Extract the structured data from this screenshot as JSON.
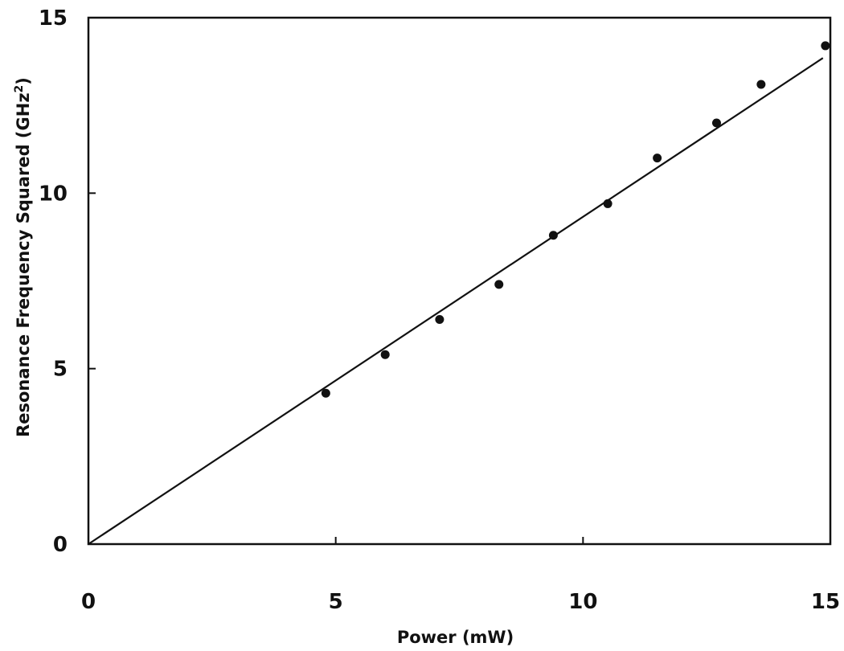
{
  "chart_data": {
    "type": "scatter",
    "title": "",
    "xlabel": "Power (mW)",
    "ylabel_main": "Resonance Frequency Squared (GHz",
    "ylabel_sup": "2",
    "ylabel_end": ")",
    "xlim": [
      0,
      15
    ],
    "ylim": [
      0,
      15
    ],
    "x_ticks": [
      0,
      5,
      10,
      15
    ],
    "y_ticks": [
      0,
      5,
      10,
      15
    ],
    "grid": false,
    "series": [
      {
        "type": "scatter",
        "x": [
          4.8,
          6.0,
          7.1,
          8.3,
          9.4,
          10.5,
          11.5,
          12.7,
          13.6,
          14.9
        ],
        "y": [
          4.3,
          5.4,
          6.4,
          7.4,
          8.8,
          9.7,
          11.0,
          12.0,
          13.1,
          14.2
        ]
      },
      {
        "type": "line",
        "x": [
          0,
          14.85
        ],
        "y": [
          0,
          13.85
        ]
      }
    ]
  }
}
